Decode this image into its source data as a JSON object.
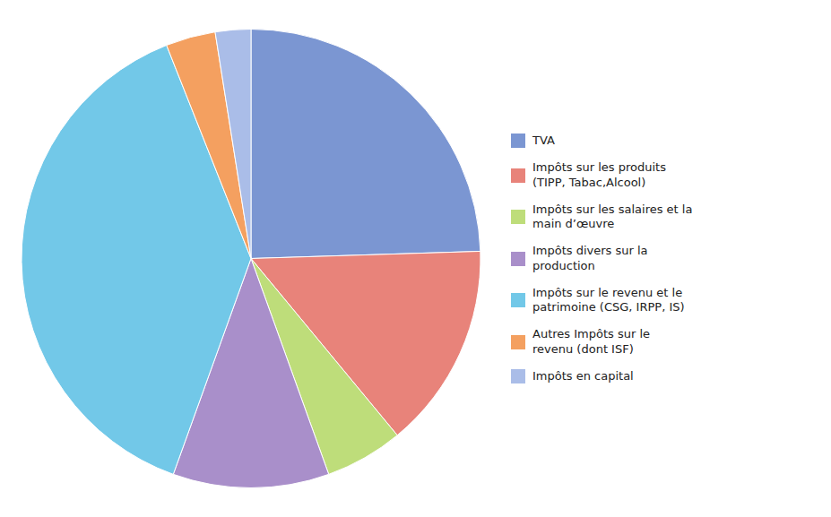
{
  "chart_data": {
    "type": "pie",
    "categories": [
      "TVA",
      "Impôts sur les produits\n(TIPP, Tabac,Alcool)",
      "Impôts sur les salaires et la\nmain d’œuvre",
      "Impôts divers sur la\nproduction",
      "Impôts sur le revenu et le\npatrimoine (CSG, IRPP, IS)",
      "Autres Impôts sur le\nrevenu (dont ISF)",
      "Impôts en capital"
    ],
    "values": [
      24.5,
      14.5,
      5.5,
      11.0,
      38.5,
      3.5,
      2.5
    ],
    "colors": [
      "#7B96D2",
      "#E8837A",
      "#BEDD7A",
      "#A98FCA",
      "#72C8E8",
      "#F4A060",
      "#AABDE8"
    ],
    "legend": "right"
  }
}
